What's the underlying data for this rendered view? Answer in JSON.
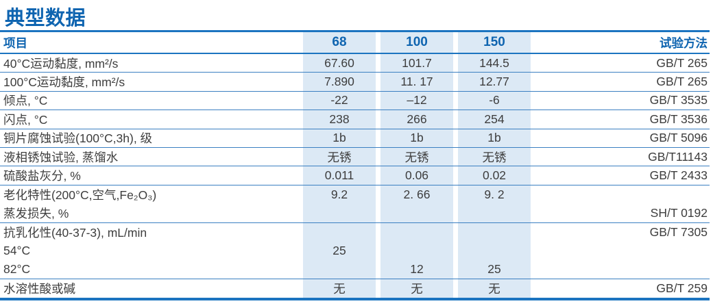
{
  "page": {
    "title": "典型数据"
  },
  "colors": {
    "accent_blue": "#0e64b0",
    "heavy_line_blue": "#1b74c0",
    "thin_line_blue": "#3a7fc1",
    "stripe_blue": "#dce9f5",
    "body_text": "#3d3d3d"
  },
  "table": {
    "header": {
      "item": "项目",
      "col68": "68",
      "col100": "100",
      "col150": "150",
      "method": "试验方法"
    },
    "rows": [
      {
        "label": "40°C运动黏度, mm²/s",
        "v68": "67.60",
        "v100": "101.7",
        "v150": "144.5",
        "method": "GB/T 265"
      },
      {
        "label": "100°C运动黏度, mm²/s",
        "v68": "7.890",
        "v100": "11. 17",
        "v150": "12.77",
        "method": "GB/T 265"
      },
      {
        "label": "倾点, °C",
        "v68": "-22",
        "v100": "–12",
        "v150": "-6",
        "method": "GB/T 3535"
      },
      {
        "label": "闪点, °C",
        "v68": "238",
        "v100": "266",
        "v150": "254",
        "method": "GB/T 3536"
      },
      {
        "label": "铜片腐蚀试验(100°C,3h), 级",
        "v68": "1b",
        "v100": "1b",
        "v150": "1b",
        "method": "GB/T 5096"
      },
      {
        "label": "液相锈蚀试验, 蒸馏水",
        "v68": "无锈",
        "v100": "无锈",
        "v150": "无锈",
        "method": "GB/T11143"
      },
      {
        "label": "硫酸盐灰分, %",
        "v68": "0.011",
        "v100": "0.06",
        "v150": "0.02",
        "method": "GB/T 2433"
      },
      {
        "label": "老化特性(200°C,空气,Fe₂O₃)",
        "v68": "9.2",
        "v100": "2. 66",
        "v150": "9. 2",
        "method": ""
      },
      {
        "label": "蒸发损失, %",
        "v68": "",
        "v100": "",
        "v150": "",
        "method": "SH/T 0192"
      },
      {
        "label": "抗乳化性(40-37-3), mL/min",
        "v68": "",
        "v100": "",
        "v150": "",
        "method": "GB/T 7305"
      },
      {
        "label": "54°C",
        "v68": "25",
        "v100": "",
        "v150": "",
        "method": ""
      },
      {
        "label": "82°C",
        "v68": "",
        "v100": "12",
        "v150": "25",
        "method": ""
      },
      {
        "label": "水溶性酸或碱",
        "v68": "无",
        "v100": "无",
        "v150": "无",
        "method": "GB/T 259"
      }
    ]
  }
}
